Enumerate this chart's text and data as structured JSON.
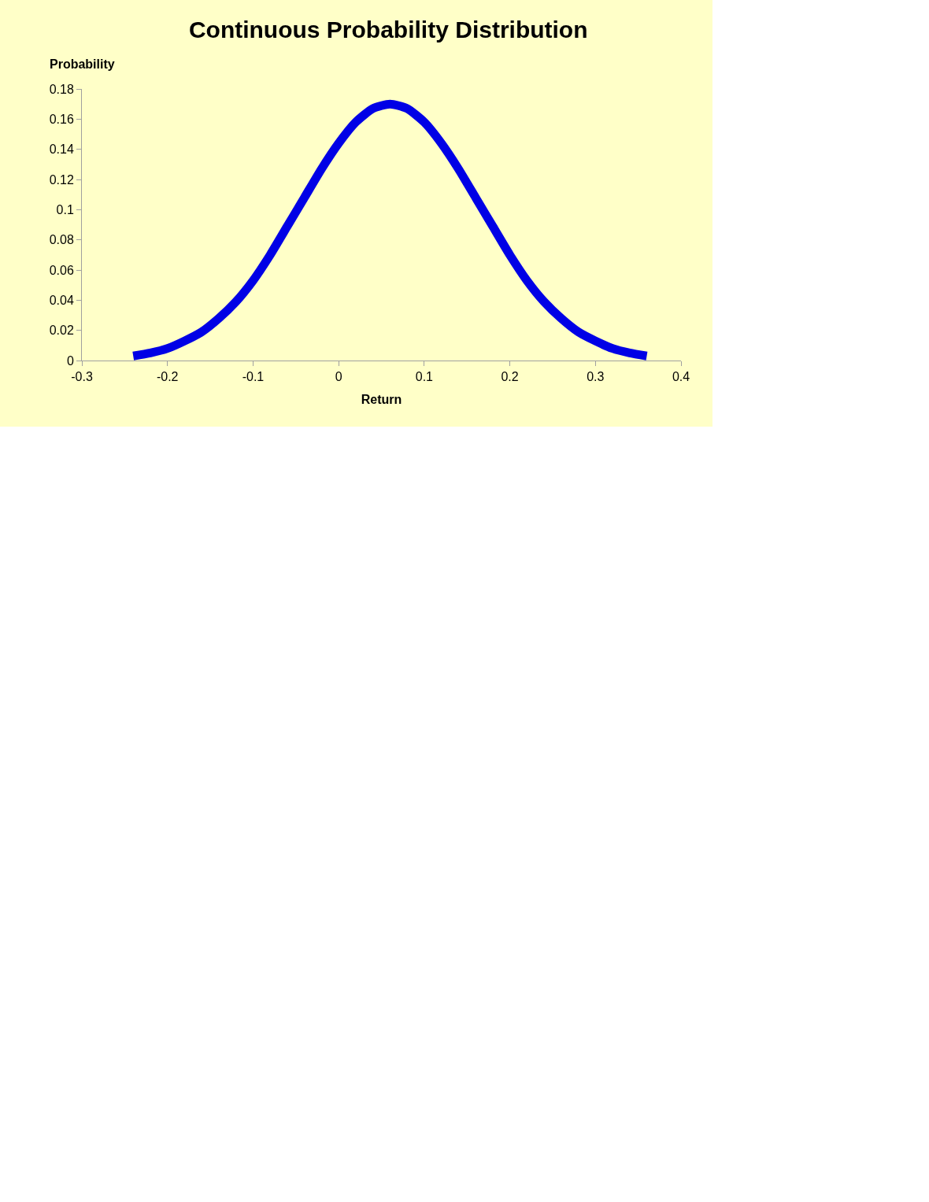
{
  "chart_data": {
    "type": "line",
    "title": "Continuous Probability Distribution",
    "xlabel": "Return",
    "ylabel": "Probability",
    "x": [
      -0.24,
      -0.22,
      -0.2,
      -0.18,
      -0.16,
      -0.14,
      -0.12,
      -0.1,
      -0.08,
      -0.06,
      -0.04,
      -0.02,
      0,
      0.02,
      0.04,
      0.06,
      0.08,
      0.1,
      0.12,
      0.14,
      0.16,
      0.18,
      0.2,
      0.22,
      0.24,
      0.26,
      0.28,
      0.3,
      0.32,
      0.34,
      0.36
    ],
    "series": [
      {
        "color": "#0000e6",
        "values": [
          0.003,
          0.005,
          0.008,
          0.013,
          0.019,
          0.028,
          0.039,
          0.053,
          0.07,
          0.089,
          0.108,
          0.127,
          0.144,
          0.158,
          0.167,
          0.17,
          0.167,
          0.158,
          0.144,
          0.127,
          0.108,
          0.089,
          0.07,
          0.053,
          0.039,
          0.028,
          0.019,
          0.013,
          0.008,
          0.005,
          0.003
        ]
      }
    ],
    "xlim": [
      -0.3,
      0.4
    ],
    "xticks": [
      -0.3,
      -0.2,
      -0.1,
      0,
      0.1,
      0.2,
      0.3,
      0.4
    ],
    "ylim": [
      0,
      0.18
    ],
    "yticks": [
      0,
      0.02,
      0.04,
      0.06,
      0.08,
      0.1,
      0.12,
      0.14,
      0.16,
      0.18
    ],
    "grid": false,
    "marker": "none",
    "line_style": "solid"
  }
}
